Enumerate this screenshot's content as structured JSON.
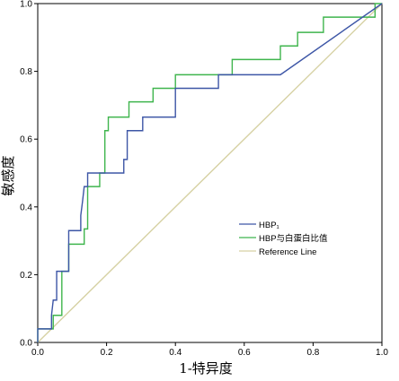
{
  "chart_data": {
    "type": "line",
    "title": "",
    "xlabel": "1-特异度",
    "ylabel": "敏感度",
    "xlim": [
      0,
      1
    ],
    "ylim": [
      0,
      1
    ],
    "x_ticks": [
      "0.0",
      "0.2",
      "0.4",
      "0.6",
      "0.8",
      "1.0"
    ],
    "y_ticks": [
      "0.0",
      "0.2",
      "0.4",
      "0.6",
      "0.8",
      "1.0"
    ],
    "grid": false,
    "legend_position": "lower-right",
    "series": [
      {
        "name": "HBP₁",
        "color": "#3d56a6",
        "points": [
          [
            0,
            0
          ],
          [
            0,
            0.04
          ],
          [
            0.04,
            0.04
          ],
          [
            0.04,
            0.08
          ],
          [
            0.045,
            0.125
          ],
          [
            0.055,
            0.125
          ],
          [
            0.055,
            0.21
          ],
          [
            0.09,
            0.21
          ],
          [
            0.09,
            0.33
          ],
          [
            0.125,
            0.33
          ],
          [
            0.125,
            0.375
          ],
          [
            0.13,
            0.415
          ],
          [
            0.135,
            0.46
          ],
          [
            0.145,
            0.46
          ],
          [
            0.145,
            0.5
          ],
          [
            0.25,
            0.5
          ],
          [
            0.25,
            0.54
          ],
          [
            0.26,
            0.54
          ],
          [
            0.26,
            0.625
          ],
          [
            0.305,
            0.625
          ],
          [
            0.305,
            0.665
          ],
          [
            0.4,
            0.665
          ],
          [
            0.4,
            0.75
          ],
          [
            0.525,
            0.75
          ],
          [
            0.525,
            0.79
          ],
          [
            0.705,
            0.79
          ],
          [
            1.0,
            1.0
          ]
        ]
      },
      {
        "name": "HBP与白蛋白比值",
        "color": "#3fb54d",
        "points": [
          [
            0,
            0
          ],
          [
            0,
            0.04
          ],
          [
            0.045,
            0.04
          ],
          [
            0.045,
            0.08
          ],
          [
            0.07,
            0.08
          ],
          [
            0.07,
            0.21
          ],
          [
            0.09,
            0.21
          ],
          [
            0.09,
            0.29
          ],
          [
            0.135,
            0.29
          ],
          [
            0.135,
            0.335
          ],
          [
            0.145,
            0.335
          ],
          [
            0.145,
            0.46
          ],
          [
            0.18,
            0.46
          ],
          [
            0.18,
            0.5
          ],
          [
            0.195,
            0.5
          ],
          [
            0.195,
            0.625
          ],
          [
            0.205,
            0.625
          ],
          [
            0.205,
            0.665
          ],
          [
            0.265,
            0.665
          ],
          [
            0.265,
            0.71
          ],
          [
            0.335,
            0.71
          ],
          [
            0.335,
            0.75
          ],
          [
            0.4,
            0.75
          ],
          [
            0.4,
            0.79
          ],
          [
            0.565,
            0.79
          ],
          [
            0.565,
            0.835
          ],
          [
            0.705,
            0.835
          ],
          [
            0.705,
            0.875
          ],
          [
            0.755,
            0.875
          ],
          [
            0.755,
            0.915
          ],
          [
            0.83,
            0.915
          ],
          [
            0.83,
            0.96
          ],
          [
            0.98,
            0.96
          ],
          [
            0.98,
            1.0
          ],
          [
            1.0,
            1.0
          ]
        ]
      },
      {
        "name": "Reference Line",
        "color": "#d6d1a3",
        "points": [
          [
            0,
            0
          ],
          [
            1,
            1
          ]
        ]
      }
    ]
  }
}
